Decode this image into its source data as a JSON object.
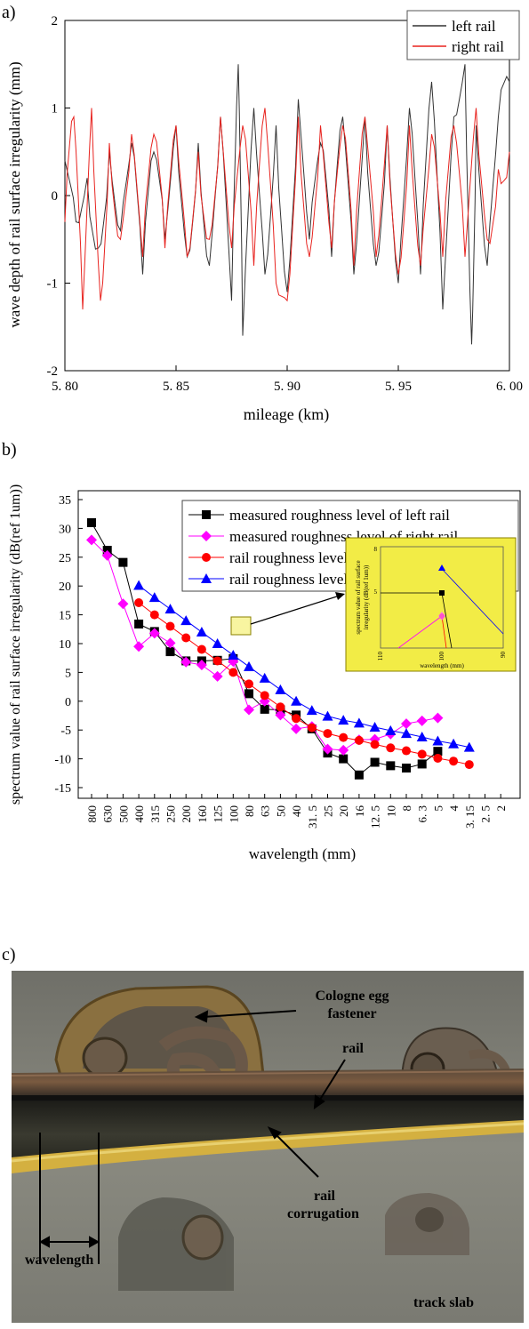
{
  "panels": {
    "a": "a)",
    "b": "b)",
    "c": "c)"
  },
  "chart_data": [
    {
      "type": "line",
      "xlabel": "mileage (km)",
      "ylabel": "wave depth of rail surface irregularity (mm)",
      "xlim": [
        5.8,
        6.0
      ],
      "ylim": [
        -2,
        2
      ],
      "xticks": [
        "5. 80",
        "5. 85",
        "5. 90",
        "5. 95",
        "6. 00"
      ],
      "yticks": [
        "2",
        "1",
        "0",
        "-1",
        "-2"
      ],
      "legend_position": "top-right",
      "colors": {
        "left rail": "#333333",
        "right rail": "#e8231f"
      },
      "series": [
        {
          "name": "left rail",
          "x": [
            5.8,
            5.805,
            5.81,
            5.815,
            5.82,
            5.825,
            5.83,
            5.835,
            5.84,
            5.845,
            5.85,
            5.855,
            5.86,
            5.865,
            5.87,
            5.875,
            5.878,
            5.88,
            5.885,
            5.89,
            5.895,
            5.9,
            5.905,
            5.91,
            5.915,
            5.92,
            5.925,
            5.93,
            5.935,
            5.94,
            5.945,
            5.95,
            5.955,
            5.96,
            5.965,
            5.97,
            5.975,
            5.98,
            5.983,
            5.985,
            5.99,
            5.995,
            6.0
          ],
          "values": [
            0.4,
            -0.3,
            0.2,
            -0.6,
            0.5,
            -0.4,
            0.6,
            -0.9,
            0.5,
            -0.5,
            0.8,
            -0.7,
            0.6,
            -0.8,
            0.9,
            -1.2,
            1.5,
            -1.6,
            1.0,
            -0.9,
            0.8,
            -1.1,
            1.1,
            -0.5,
            0.6,
            -0.7,
            0.9,
            -0.9,
            0.9,
            -0.8,
            0.8,
            -1.0,
            1.0,
            -0.9,
            1.3,
            -1.3,
            0.9,
            1.5,
            -1.7,
            0.8,
            -0.8,
            0.9,
            1.3
          ]
        },
        {
          "name": "right rail",
          "x": [
            5.8,
            5.804,
            5.808,
            5.812,
            5.816,
            5.82,
            5.825,
            5.83,
            5.835,
            5.84,
            5.845,
            5.85,
            5.855,
            5.86,
            5.865,
            5.87,
            5.875,
            5.88,
            5.885,
            5.89,
            5.895,
            5.9,
            5.905,
            5.91,
            5.915,
            5.92,
            5.925,
            5.93,
            5.935,
            5.94,
            5.945,
            5.95,
            5.955,
            5.96,
            5.965,
            5.97,
            5.975,
            5.98,
            5.985,
            5.99,
            5.995,
            6.0
          ],
          "values": [
            -0.3,
            0.9,
            -1.3,
            1.0,
            -1.2,
            0.6,
            -0.5,
            0.7,
            -0.7,
            0.7,
            -0.6,
            0.8,
            -0.7,
            0.5,
            -0.5,
            0.9,
            -0.6,
            0.8,
            -0.8,
            1.0,
            -1.0,
            -1.2,
            0.9,
            -0.7,
            0.8,
            -0.6,
            0.8,
            -0.8,
            0.9,
            -0.7,
            0.8,
            -0.9,
            0.8,
            -0.8,
            0.7,
            -0.7,
            0.8,
            -0.7,
            1.0,
            -0.5,
            0.3,
            0.5
          ]
        }
      ]
    },
    {
      "type": "line",
      "xlabel": "wavelength (mm)",
      "ylabel": "spectrum value of rail surface irregularity (dB(ref 1um))",
      "ylim": [
        -17,
        35
      ],
      "categories": [
        "800",
        "630",
        "500",
        "400",
        "315",
        "250",
        "200",
        "160",
        "125",
        "100",
        "80",
        "63",
        "50",
        "40",
        "31. 5",
        "25",
        "20",
        "16",
        "12. 5",
        "10",
        "8",
        "6. 3",
        "5",
        "4",
        "3. 15",
        "2. 5",
        "2"
      ],
      "yticks": [
        "35",
        "30",
        "25",
        "20",
        "15",
        "10",
        "5",
        "0",
        "-5",
        "-10",
        "-15"
      ],
      "legend_position": "top-right",
      "series": [
        {
          "name": "measured roughness level of left rail",
          "color": "#000000",
          "marker": "square",
          "values": [
            31,
            26.2,
            24.1,
            13.4,
            12.1,
            8.6,
            7,
            7,
            7.1,
            7.4,
            1.3,
            -1.4,
            -1.5,
            -2.4,
            -4.8,
            -9,
            -10,
            -12.8,
            -10.6,
            -11.2,
            -11.6,
            -10.9,
            -8.7,
            null,
            null,
            null,
            null
          ]
        },
        {
          "name": "measured roughness level of right rail",
          "color": "#ff00ff",
          "marker": "diamond",
          "values": [
            28,
            25.3,
            16.9,
            9.5,
            11.8,
            10.1,
            6.8,
            6.3,
            4.3,
            6.9,
            -1.5,
            0,
            -2.4,
            -4.8,
            -4.4,
            -8.3,
            -8.5,
            -6.7,
            -6.6,
            -5.7,
            -3.9,
            -3.4,
            -2.9,
            null,
            null,
            null,
            null
          ]
        },
        {
          "name": "rail roughness level limit",
          "color": "#ff0000",
          "marker": "circle",
          "values": [
            null,
            null,
            null,
            17.1,
            15,
            13,
            11,
            9,
            7,
            5,
            3,
            1,
            -1,
            -3,
            -4.6,
            -5.6,
            -6.3,
            -6.8,
            -7.5,
            -8.1,
            -8.6,
            -9.2,
            -9.9,
            -10.4,
            -11,
            null,
            null
          ]
        },
        {
          "name": "rail roughness level limit+3dB",
          "color": "#0000ff",
          "marker": "triangle",
          "values": [
            null,
            null,
            null,
            20.1,
            18,
            16,
            14,
            12,
            10,
            8,
            6,
            4,
            2,
            0,
            -1.6,
            -2.6,
            -3.3,
            -3.8,
            -4.5,
            -5.1,
            -5.6,
            -6.2,
            -6.9,
            -7.4,
            -8,
            null,
            null
          ]
        }
      ],
      "inset": {
        "ylabel": "spectrum value of rail surface irregularity (dB(ref 1um))",
        "xlabel": "wavelength (mm)",
        "xticks": [
          "110",
          "100",
          "90"
        ],
        "yticks": [
          "8",
          "5"
        ]
      }
    }
  ],
  "photo": {
    "labels": {
      "fastener": "Cologne egg fastener",
      "rail": "rail",
      "corrugation": "rail corrugation",
      "wavelength": "wavelength",
      "slab": "track slab"
    }
  }
}
